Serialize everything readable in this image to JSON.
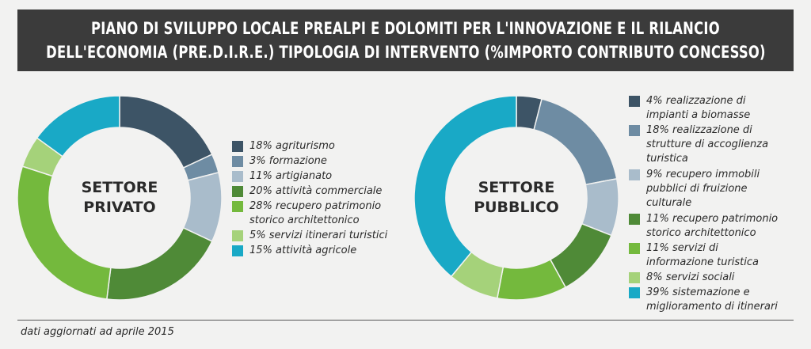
{
  "title": {
    "line1": "PIANO DI SVILUPPO LOCALE PREALPI E DOLOMITI PER L'INNOVAZIONE E IL RILANCIO",
    "line2": "DELL'ECONOMIA (PRE.D.I.R.E.) TIPOLOGIA DI INTERVENTO (%IMPORTO CONTRIBUTO CONCESSO)"
  },
  "chart_data": [
    {
      "type": "pie",
      "donut": true,
      "center_label": [
        "SETTORE",
        "PRIVATO"
      ],
      "unit": "%",
      "slices": [
        {
          "label": "18% agriturismo",
          "value": 18,
          "color": "#3d5466"
        },
        {
          "label": "3% formazione",
          "value": 3,
          "color": "#6e8ca3"
        },
        {
          "label": "11% artigianato",
          "value": 11,
          "color": "#a9bccb"
        },
        {
          "label": "20% attività commerciale",
          "value": 20,
          "color": "#4f8a37"
        },
        {
          "label": "28% recupero patrimonio storico architettonico",
          "lines": [
            "28% recupero patrimonio",
            "storico architettonico"
          ],
          "value": 28,
          "color": "#74b93d"
        },
        {
          "label": "5% servizi itinerari turistici",
          "value": 5,
          "color": "#a5d27a"
        },
        {
          "label": "15% attività agricole",
          "value": 15,
          "color": "#19a9c6"
        }
      ]
    },
    {
      "type": "pie",
      "donut": true,
      "center_label": [
        "SETTORE",
        "PUBBLICO"
      ],
      "unit": "%",
      "slices": [
        {
          "label": "4% realizzazione di impianti a biomasse",
          "lines": [
            "4% realizzazione di",
            "impianti a biomasse"
          ],
          "value": 4,
          "color": "#3d5466"
        },
        {
          "label": "18% realizzazione di strutture di accoglienza turistica",
          "lines": [
            "18% realizzazione di",
            "strutture di accoglienza",
            "turistica"
          ],
          "value": 18,
          "color": "#6e8ca3"
        },
        {
          "label": "9% recupero immobili pubblici di fruizione culturale",
          "lines": [
            "9% recupero immobili",
            "pubblici di fruizione",
            "culturale"
          ],
          "value": 9,
          "color": "#a9bccb"
        },
        {
          "label": "11% recupero patrimonio storico architettonico",
          "lines": [
            "11% recupero patrimonio",
            "storico architettonico"
          ],
          "value": 11,
          "color": "#4f8a37"
        },
        {
          "label": "11% servizi di informazione turistica",
          "lines": [
            "11% servizi di",
            "informazione turistica"
          ],
          "value": 11,
          "color": "#74b93d"
        },
        {
          "label": "8% servizi sociali",
          "value": 8,
          "color": "#a5d27a"
        },
        {
          "label": "39% sistemazione e miglioramento di itinerari",
          "lines": [
            "39% sistemazione e",
            "miglioramento di itinerari"
          ],
          "value": 39,
          "color": "#19a9c6"
        }
      ]
    }
  ],
  "footer": "dati aggiornati ad aprile 2015"
}
